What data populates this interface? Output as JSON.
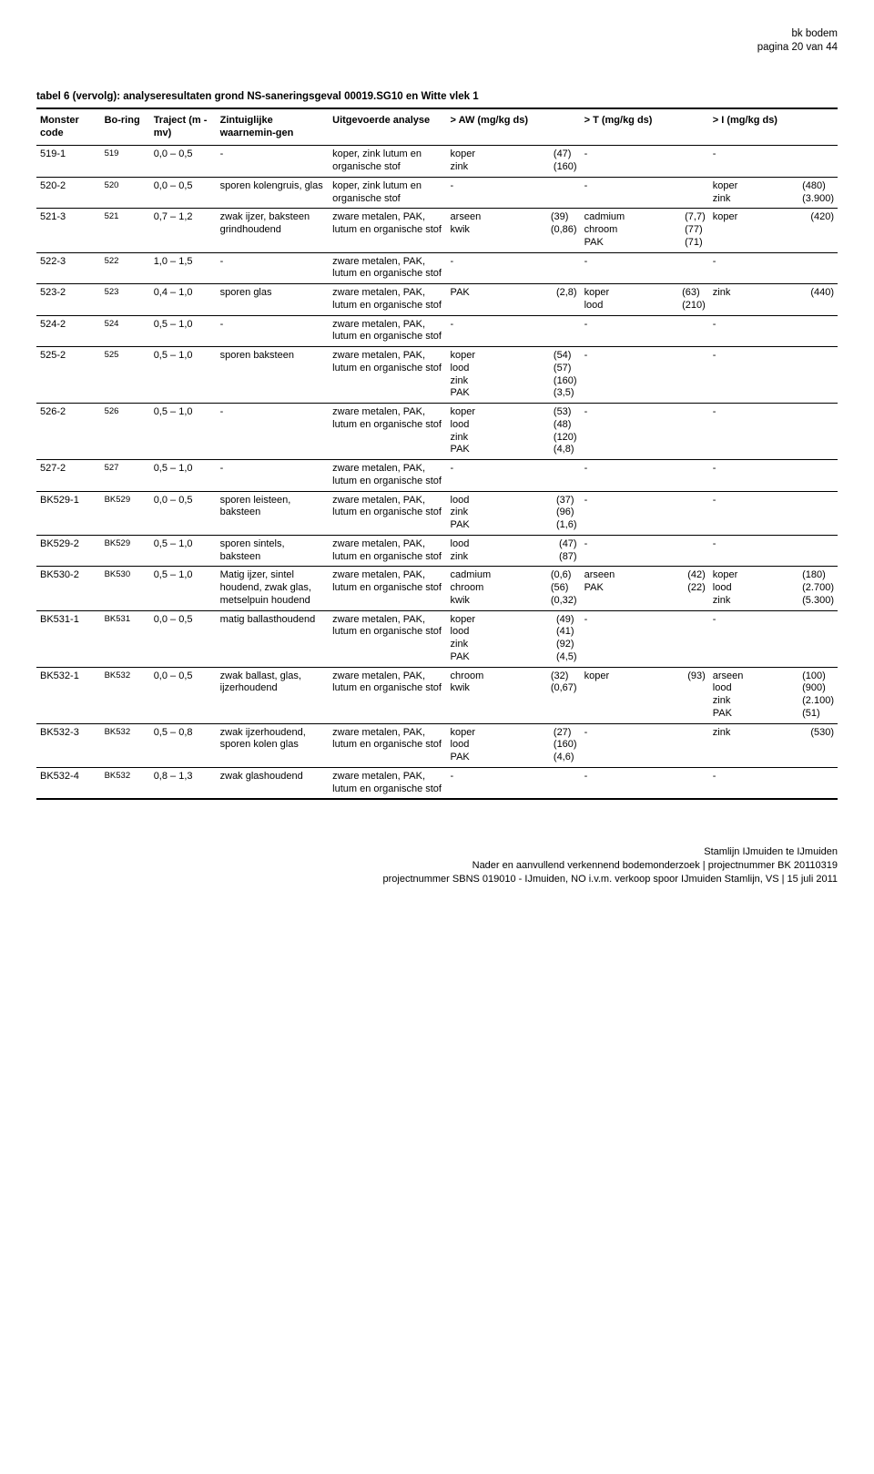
{
  "header": {
    "line1": "bk bodem",
    "line2": "pagina 20 van 44"
  },
  "caption": "tabel 6 (vervolg): analyseresultaten grond NS-saneringsgeval 00019.SG10 en Witte vlek 1",
  "columns": {
    "monster": "Monster code",
    "boring": "Bo-ring",
    "traject": "Traject (m -mv)",
    "waarn": "Zintuiglijke waarnemin-gen",
    "analyse": "Uitgevoerde analyse",
    "aw": "> AW (mg/kg ds)",
    "t": "> T (mg/kg ds)",
    "i": "> I (mg/kg ds)"
  },
  "rows": [
    {
      "monster": "519-1",
      "boring": "519",
      "traject": "0,0 – 0,5",
      "waarn": "-",
      "analyse": "koper, zink lutum en organische stof",
      "aw": [
        [
          "koper",
          "(47)"
        ],
        [
          "zink",
          "(160)"
        ]
      ],
      "t": "-",
      "i": "-"
    },
    {
      "monster": "520-2",
      "boring": "520",
      "traject": "0,0 – 0,5",
      "waarn": "sporen kolengruis, glas",
      "analyse": "koper, zink lutum en organische stof",
      "aw": "-",
      "t": "-",
      "i": [
        [
          "koper",
          "(480)"
        ],
        [
          "zink",
          "(3.900)"
        ]
      ]
    },
    {
      "monster": "521-3",
      "boring": "521",
      "traject": "0,7 – 1,2",
      "waarn": "zwak ijzer, baksteen grindhoudend",
      "analyse": "zware metalen, PAK, lutum en organische stof",
      "aw": [
        [
          "arseen",
          "(39)"
        ],
        [
          "kwik",
          "(0,86)"
        ]
      ],
      "t": [
        [
          "cadmium",
          "(7,7)"
        ],
        [
          "chroom",
          "(77)"
        ],
        [
          "PAK",
          "(71)"
        ]
      ],
      "i": [
        [
          "koper",
          "(420)"
        ]
      ]
    },
    {
      "monster": "522-3",
      "boring": "522",
      "traject": "1,0 – 1,5",
      "waarn": "-",
      "analyse": "zware metalen, PAK, lutum en organische stof",
      "aw": "-",
      "t": "-",
      "i": "-"
    },
    {
      "monster": "523-2",
      "boring": "523",
      "traject": "0,4 – 1,0",
      "waarn": "sporen glas",
      "analyse": "zware metalen, PAK, lutum en organische stof",
      "aw": [
        [
          "PAK",
          "(2,8)"
        ]
      ],
      "t": [
        [
          "koper",
          "(63)"
        ],
        [
          "lood",
          "(210)"
        ]
      ],
      "i": [
        [
          "zink",
          "(440)"
        ]
      ]
    },
    {
      "monster": "524-2",
      "boring": "524",
      "traject": "0,5 – 1,0",
      "waarn": "-",
      "analyse": "zware metalen, PAK, lutum en organische stof",
      "aw": "-",
      "t": "-",
      "i": "-"
    },
    {
      "monster": "525-2",
      "boring": "525",
      "traject": "0,5 – 1,0",
      "waarn": "sporen baksteen",
      "analyse": "zware metalen, PAK, lutum en organische stof",
      "aw": [
        [
          "koper",
          "(54)"
        ],
        [
          "lood",
          "(57)"
        ],
        [
          "zink",
          "(160)"
        ],
        [
          "PAK",
          "(3,5)"
        ]
      ],
      "t": "-",
      "i": "-"
    },
    {
      "monster": "526-2",
      "boring": "526",
      "traject": "0,5 – 1,0",
      "waarn": "-",
      "analyse": "zware metalen, PAK, lutum en organische stof",
      "aw": [
        [
          "koper",
          "(53)"
        ],
        [
          "lood",
          "(48)"
        ],
        [
          "zink",
          "(120)"
        ],
        [
          "PAK",
          "(4,8)"
        ]
      ],
      "t": "-",
      "i": "-"
    },
    {
      "monster": "527-2",
      "boring": "527",
      "traject": "0,5 – 1,0",
      "waarn": "-",
      "analyse": "zware metalen, PAK, lutum en organische stof",
      "aw": "-",
      "t": "-",
      "i": "-"
    },
    {
      "monster": "BK529-1",
      "boring": "BK529",
      "traject": "0,0 – 0,5",
      "waarn": "sporen leisteen, baksteen",
      "analyse": "zware metalen, PAK, lutum en organische stof",
      "aw": [
        [
          "lood",
          "(37)"
        ],
        [
          "zink",
          "(96)"
        ],
        [
          "PAK",
          "(1,6)"
        ]
      ],
      "t": "-",
      "i": "-"
    },
    {
      "monster": "BK529-2",
      "boring": "BK529",
      "traject": "0,5 – 1,0",
      "waarn": "sporen sintels, baksteen",
      "analyse": "zware metalen, PAK, lutum en organische stof",
      "aw": [
        [
          "lood",
          "(47)"
        ],
        [
          "zink",
          "(87)"
        ]
      ],
      "t": "-",
      "i": "-"
    },
    {
      "monster": "BK530-2",
      "boring": "BK530",
      "traject": "0,5 – 1,0",
      "waarn": "Matig ijzer, sintel houdend, zwak glas, metselpuin houdend",
      "analyse": "zware metalen, PAK, lutum en organische stof",
      "aw": [
        [
          "cadmium",
          "(0,6)"
        ],
        [
          "chroom",
          "(56)"
        ],
        [
          "kwik",
          "(0,32)"
        ]
      ],
      "t": [
        [
          "arseen",
          "(42)"
        ],
        [
          "PAK",
          "(22)"
        ]
      ],
      "i": [
        [
          "koper",
          "(180)"
        ],
        [
          "lood",
          "(2.700)"
        ],
        [
          "zink",
          "(5.300)"
        ]
      ]
    },
    {
      "monster": "BK531-1",
      "boring": "BK531",
      "traject": "0,0 – 0,5",
      "waarn": "matig ballasthoudend",
      "analyse": "zware metalen, PAK, lutum en organische stof",
      "aw": [
        [
          "koper",
          "(49)"
        ],
        [
          "lood",
          "(41)"
        ],
        [
          "zink",
          "(92)"
        ],
        [
          "PAK",
          "(4,5)"
        ]
      ],
      "t": "-",
      "i": "-"
    },
    {
      "monster": "BK532-1",
      "boring": "BK532",
      "traject": "0,0 – 0,5",
      "waarn": "zwak ballast, glas, ijzerhoudend",
      "analyse": "zware metalen, PAK, lutum en organische stof",
      "aw": [
        [
          "chroom",
          "(32)"
        ],
        [
          "kwik",
          "(0,67)"
        ]
      ],
      "t": [
        [
          "koper",
          "(93)"
        ]
      ],
      "i": [
        [
          "arseen",
          "(100)"
        ],
        [
          "lood",
          "(900)"
        ],
        [
          "zink",
          "(2.100)"
        ],
        [
          "PAK",
          "(51)"
        ]
      ]
    },
    {
      "monster": "BK532-3",
      "boring": "BK532",
      "traject": "0,5 – 0,8",
      "waarn": "zwak ijzerhoudend, sporen kolen glas",
      "analyse": "zware metalen, PAK, lutum en organische stof",
      "aw": [
        [
          "koper",
          "(27)"
        ],
        [
          "lood",
          "(160)"
        ],
        [
          "PAK",
          "(4,6)"
        ]
      ],
      "t": "-",
      "i": [
        [
          "zink",
          "(530)"
        ]
      ]
    },
    {
      "monster": "BK532-4",
      "boring": "BK532",
      "traject": "0,8 – 1,3",
      "waarn": "zwak glashoudend",
      "analyse": "zware metalen, PAK, lutum en organische stof",
      "aw": "-",
      "t": "-",
      "i": "-"
    }
  ],
  "footer": {
    "line1": "Stamlijn IJmuiden te IJmuiden",
    "line2": "Nader en aanvullend verkennend bodemonderzoek | projectnummer BK 20110319",
    "line3": "projectnummer SBNS 019010 - IJmuiden, NO i.v.m. verkoop spoor IJmuiden Stamlijn, VS | 15 juli 2011"
  }
}
